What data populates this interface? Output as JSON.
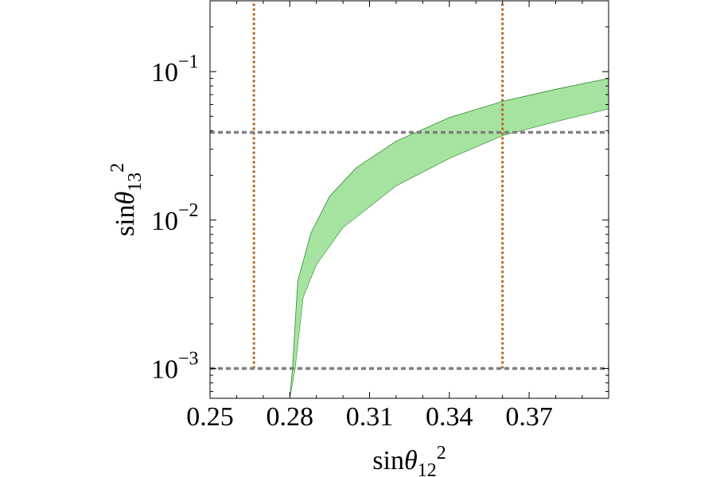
{
  "chart_data": {
    "type": "area",
    "xlabel": "sinθ12²",
    "ylabel": "sinθ13²",
    "xlim": [
      0.25,
      0.3999
    ],
    "ylim": [
      0.00063,
      0.3
    ],
    "yscale": "log",
    "grid": false,
    "x_ticks": [
      {
        "value": 0.25,
        "label": "0.25"
      },
      {
        "value": 0.28,
        "label": "0.28"
      },
      {
        "value": 0.31,
        "label": "0.31"
      },
      {
        "value": 0.34,
        "label": "0.34"
      },
      {
        "value": 0.37,
        "label": "0.37"
      }
    ],
    "y_ticks": [
      {
        "value": 0.001,
        "base": "10",
        "exp": "−3"
      },
      {
        "value": 0.01,
        "base": "10",
        "exp": "−2"
      },
      {
        "value": 0.1,
        "base": "10",
        "exp": "−1"
      }
    ],
    "band": {
      "fill": "#a6e3a1",
      "edge": "#2e8b2e",
      "upper": [
        {
          "x": 0.28,
          "y": 0.00063
        },
        {
          "x": 0.281,
          "y": 0.001
        },
        {
          "x": 0.283,
          "y": 0.0039
        },
        {
          "x": 0.288,
          "y": 0.0082
        },
        {
          "x": 0.295,
          "y": 0.0145
        },
        {
          "x": 0.305,
          "y": 0.0225
        },
        {
          "x": 0.32,
          "y": 0.034
        },
        {
          "x": 0.34,
          "y": 0.049
        },
        {
          "x": 0.36,
          "y": 0.063
        },
        {
          "x": 0.38,
          "y": 0.076
        },
        {
          "x": 0.3999,
          "y": 0.09
        }
      ],
      "lower": [
        {
          "x": 0.28,
          "y": 0.00063
        },
        {
          "x": 0.282,
          "y": 0.001
        },
        {
          "x": 0.285,
          "y": 0.003
        },
        {
          "x": 0.29,
          "y": 0.005
        },
        {
          "x": 0.3,
          "y": 0.0089
        },
        {
          "x": 0.32,
          "y": 0.017
        },
        {
          "x": 0.34,
          "y": 0.026
        },
        {
          "x": 0.36,
          "y": 0.037
        },
        {
          "x": 0.38,
          "y": 0.046
        },
        {
          "x": 0.3999,
          "y": 0.056
        }
      ]
    },
    "reference_lines": [
      {
        "orientation": "vertical",
        "value": 0.2665,
        "from": 0.001,
        "to": 0.3,
        "color": "#b5651d"
      },
      {
        "orientation": "vertical",
        "value": 0.36,
        "from": 0.001,
        "to": 0.3,
        "color": "#b5651d"
      },
      {
        "orientation": "horizontal",
        "value": 0.039,
        "color": "#808080"
      },
      {
        "orientation": "horizontal",
        "value": 0.001,
        "color": "#808080"
      }
    ]
  }
}
